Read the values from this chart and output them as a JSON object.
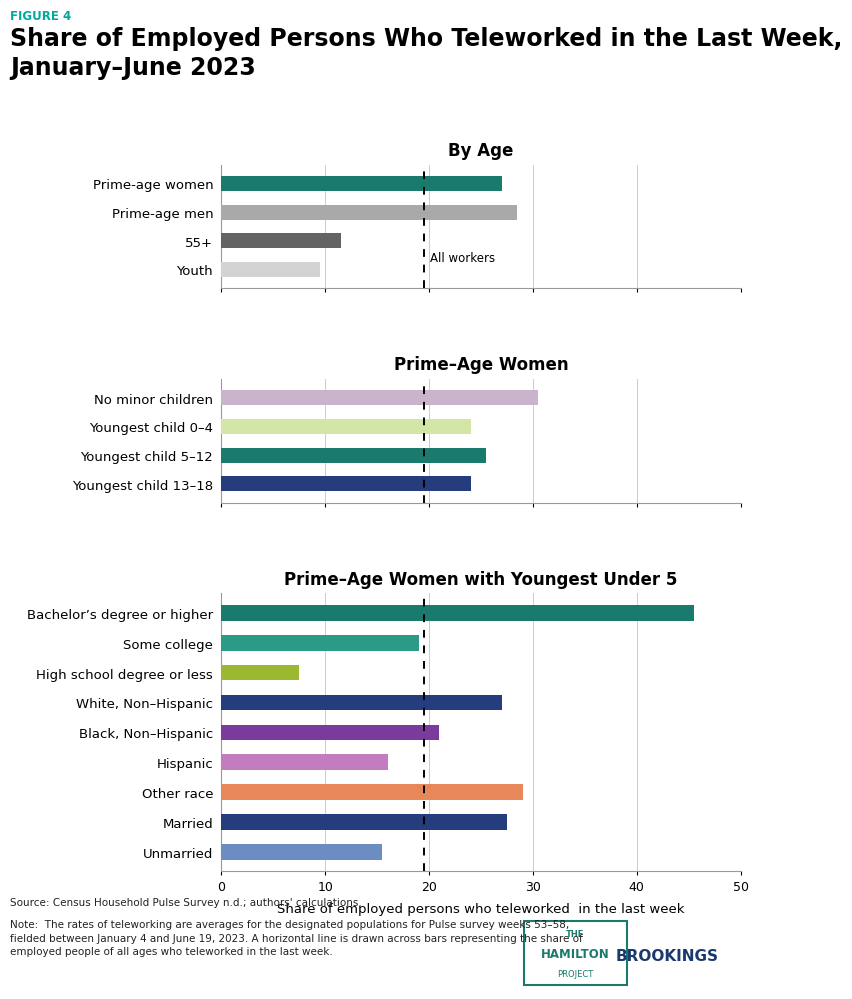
{
  "figure_label": "FIGURE 4",
  "figure_label_color": "#00A99D",
  "title": "Share of Employed Persons Who Teleworked in the Last Week,\nJanuary–June 2023",
  "title_fontsize": 17,
  "subtitle_fontsize": 12,
  "all_workers_line": 19.5,
  "xlabel": "Share of employed persons who teleworked  in the last week",
  "xlim": [
    0,
    50
  ],
  "xticks": [
    0,
    10,
    20,
    30,
    40,
    50
  ],
  "section1_title": "By Age",
  "section1_categories": [
    "Prime-age women",
    "Prime-age men",
    "55+",
    "Youth"
  ],
  "section1_values": [
    27.0,
    28.5,
    11.5,
    9.5
  ],
  "section1_colors": [
    "#1a7a6e",
    "#a9a9a9",
    "#636363",
    "#d3d3d3"
  ],
  "section2_title": "Prime–Age Women",
  "section2_categories": [
    "No minor children",
    "Youngest child 0–4",
    "Youngest child 5–12",
    "Youngest child 13–18"
  ],
  "section2_values": [
    30.5,
    24.0,
    25.5,
    24.0
  ],
  "section2_colors": [
    "#c9b4cc",
    "#d4e6a5",
    "#1a7a6e",
    "#253d7c"
  ],
  "section3_title": "Prime–Age Women with Youngest Under 5",
  "section3_categories": [
    "Bachelor’s degree or higher",
    "Some college",
    "High school degree or less",
    "White, Non–Hispanic",
    "Black, Non–Hispanic",
    "Hispanic",
    "Other race",
    "Married",
    "Unmarried"
  ],
  "section3_values": [
    45.5,
    19.0,
    7.5,
    27.0,
    21.0,
    16.0,
    29.0,
    27.5,
    15.5
  ],
  "section3_colors": [
    "#1a7a6e",
    "#2b9a86",
    "#9ab830",
    "#253d7c",
    "#7b3b9c",
    "#c47cc0",
    "#e8875a",
    "#253d7c",
    "#6b8dc4"
  ],
  "source_text": "Source: Census Household Pulse Survey n.d.; authors' calculations.",
  "note_text": "Note:  The rates of teleworking are averages for the designated populations for Pulse survey weeks 53–58,\nfielded between January 4 and June 19, 2023. A horizontal line is drawn across bars representing the share of\nemployed people of all ages who teleworked in the last week.",
  "background_color": "#ffffff",
  "bar_height": 0.52,
  "grid_color": "#cccccc",
  "spine_color": "#999999",
  "label_fontsize": 9.5,
  "tick_fontsize": 9,
  "axis_label_fontsize": 9.5
}
